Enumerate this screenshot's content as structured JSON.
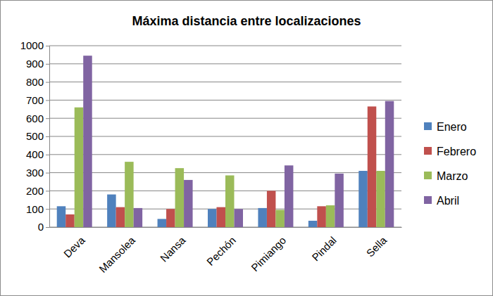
{
  "chart_data": {
    "type": "bar",
    "title": "Máxima distancia entre localizaciones",
    "categories": [
      "Deva",
      "Mansolea",
      "Nansa",
      "Pechón",
      "Pimiango",
      "Pindal",
      "Sella"
    ],
    "series": [
      {
        "name": "Enero",
        "color": "#4f81bd",
        "values": [
          115,
          180,
          45,
          100,
          105,
          35,
          310
        ]
      },
      {
        "name": "Febrero",
        "color": "#c0504d",
        "values": [
          70,
          110,
          100,
          110,
          200,
          115,
          665
        ]
      },
      {
        "name": "Marzo",
        "color": "#9bbb59",
        "values": [
          660,
          360,
          325,
          285,
          95,
          120,
          310
        ]
      },
      {
        "name": "Abril",
        "color": "#8064a2",
        "values": [
          945,
          105,
          260,
          100,
          340,
          295,
          695
        ]
      }
    ],
    "ylim": [
      0,
      1000
    ],
    "yticks": [
      0,
      100,
      200,
      300,
      400,
      500,
      600,
      700,
      800,
      900,
      1000
    ],
    "grid": true,
    "legend": "right"
  }
}
